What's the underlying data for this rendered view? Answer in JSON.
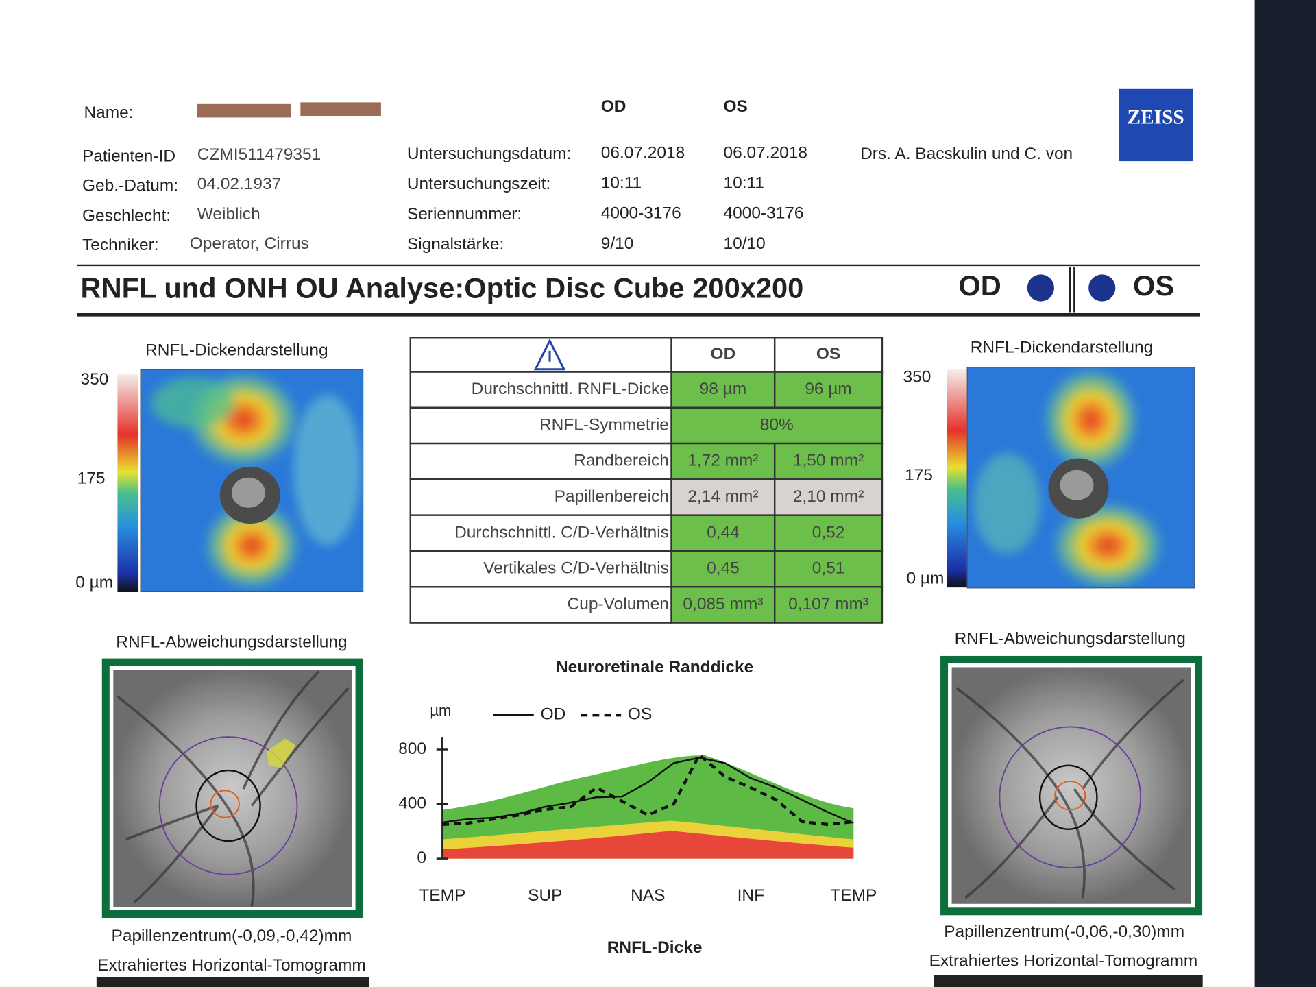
{
  "patient": {
    "name_label": "Name:",
    "fields": [
      {
        "label": "Patienten-ID",
        "value": "CZMI511479351"
      },
      {
        "label": "Geb.-Datum:",
        "value": "04.02.1937"
      },
      {
        "label": "Geschlecht:",
        "value": "Weiblich"
      },
      {
        "label": "Techniker:",
        "value": "Operator, Cirrus"
      }
    ]
  },
  "exam": {
    "columns": [
      "OD",
      "OS"
    ],
    "rows": [
      {
        "label": "Untersuchungsdatum:",
        "od": "06.07.2018",
        "os": "06.07.2018"
      },
      {
        "label": "Untersuchungszeit:",
        "od": "10:11",
        "os": "10:11"
      },
      {
        "label": "Seriennummer:",
        "od": "4000-3176",
        "os": "4000-3176"
      },
      {
        "label": "Signalstärke:",
        "od": "9/10",
        "os": "10/10"
      }
    ],
    "physician": "Drs. A. Bacskulin und C. von"
  },
  "logo": "ZEISS",
  "title": {
    "text": "RNFL und ONH OU Analyse:Optic Disc Cube 200x200",
    "left_eye": "OD",
    "right_eye": "OS"
  },
  "thickness_maps": [
    {
      "title": "RNFL-Dickendarstellung",
      "scale": [
        "350",
        "175",
        "0 µm"
      ]
    },
    {
      "title": "RNFL-Dickendarstellung",
      "scale": [
        "350",
        "175",
        "0 µm"
      ]
    }
  ],
  "table": {
    "header": [
      "OD",
      "OS"
    ],
    "rows": [
      [
        "Durchschnittl. RNFL-Dicke",
        "98 µm",
        "96 µm"
      ],
      [
        "RNFL-Symmetrie",
        "80%"
      ],
      [
        "Randbereich",
        "1,72 mm²",
        "1,50 mm²"
      ],
      [
        "Papillenbereich",
        "2,14 mm²",
        "2,10 mm²"
      ],
      [
        "Durchschnittl. C/D-Verhältnis",
        "0,44",
        "0,52"
      ],
      [
        "Vertikales C/D-Verhältnis",
        "0,45",
        "0,51"
      ],
      [
        "Cup-Volumen",
        "0,085 mm³",
        "0,107 mm³"
      ]
    ],
    "row_colors": [
      "#6dbf4c",
      "#6dbf4c",
      "#6dbf4c",
      "#d8d3d0",
      "#6dbf4c",
      "#6dbf4c",
      "#6dbf4c"
    ]
  },
  "deviation_maps": [
    {
      "title": "RNFL-Abweichungsdarstellung",
      "center": "Papillenzentrum(-0,09,-0,42)mm",
      "caption": "Extrahiertes Horizontal-Tomogramm"
    },
    {
      "title": "RNFL-Abweichungsdarstellung",
      "center": "Papillenzentrum(-0,06,-0,30)mm",
      "caption": "Extrahiertes Horizontal-Tomogramm"
    }
  ],
  "chart_data": {
    "type": "line",
    "title": "Neuroretinale Randdicke",
    "y_label": "µm",
    "categories": [
      "TEMP",
      null,
      null,
      null,
      "SUP",
      null,
      null,
      null,
      "NAS",
      null,
      null,
      null,
      "INF",
      null,
      null,
      null,
      "TEMP"
    ],
    "series": [
      {
        "name": "OD",
        "color": "#111111",
        "dash": "solid",
        "values": [
          265,
          290,
          300,
          330,
          380,
          410,
          450,
          455,
          560,
          700,
          740,
          700,
          590,
          520,
          430,
          340,
          260
        ]
      },
      {
        "name": "OS",
        "color": "#111111",
        "dash": "dashed",
        "values": [
          250,
          260,
          290,
          320,
          360,
          380,
          520,
          420,
          320,
          400,
          760,
          600,
          520,
          430,
          270,
          250,
          270
        ]
      }
    ],
    "ylim": [
      0,
      800
    ],
    "yticks": [
      0,
      400,
      800
    ]
  },
  "footer_title": "RNFL-Dicke"
}
